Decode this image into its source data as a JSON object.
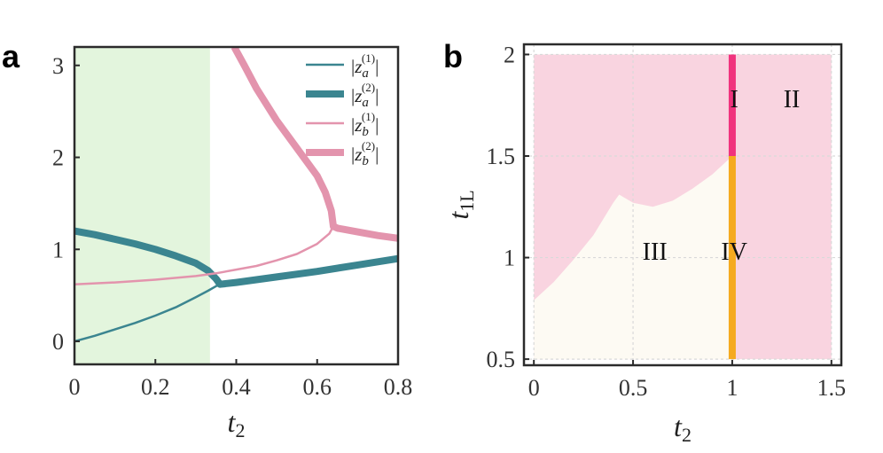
{
  "chart_data": [
    {
      "type": "line",
      "panel_label": "a",
      "xlabel": "t",
      "xlabel_sub": "2",
      "ylabel": "",
      "xlim": [
        0,
        0.8
      ],
      "ylim": [
        -0.25,
        3.2
      ],
      "xticks": [
        0,
        0.2,
        0.4,
        0.6,
        0.8
      ],
      "xtick_labels": [
        "0",
        "0.2",
        "0.4",
        "0.6",
        "0.8"
      ],
      "yticks": [
        0,
        1,
        2,
        3
      ],
      "ytick_labels": [
        "0",
        "1",
        "2",
        "3"
      ],
      "shaded_region": {
        "x": [
          0,
          0.335
        ],
        "color": "#e3f5dd"
      },
      "legend_position": "top-right",
      "series": [
        {
          "name": "|z_a^(1)|",
          "legend": {
            "pipe_open": "|",
            "base": "z",
            "sub": "a",
            "sup": "(1)",
            "pipe_close": "|"
          },
          "color": "#3b8590",
          "width": "thin",
          "x": [
            0,
            0.05,
            0.1,
            0.15,
            0.2,
            0.25,
            0.3,
            0.33,
            0.35,
            0.36
          ],
          "y": [
            0,
            0.06,
            0.13,
            0.2,
            0.28,
            0.37,
            0.48,
            0.55,
            0.6,
            0.62
          ]
        },
        {
          "name": "|z_a^(2)|",
          "legend": {
            "pipe_open": "|",
            "base": "z",
            "sub": "a",
            "sup": "(2)",
            "pipe_close": "|"
          },
          "color": "#3b8590",
          "width": "thick",
          "x": [
            0,
            0.05,
            0.1,
            0.15,
            0.2,
            0.25,
            0.3,
            0.33,
            0.35,
            0.36,
            0.4,
            0.5,
            0.6,
            0.7,
            0.8
          ],
          "y": [
            1.2,
            1.16,
            1.11,
            1.06,
            1.0,
            0.93,
            0.85,
            0.77,
            0.68,
            0.62,
            0.64,
            0.7,
            0.76,
            0.83,
            0.9
          ]
        },
        {
          "name": "|z_b^(1)|",
          "legend": {
            "pipe_open": "|",
            "base": "z",
            "sub": "b",
            "sup": "(1)",
            "pipe_close": "|"
          },
          "color": "#e394ad",
          "width": "thin",
          "x": [
            0,
            0.1,
            0.2,
            0.3,
            0.35,
            0.4,
            0.45,
            0.5,
            0.55,
            0.6,
            0.63,
            0.64
          ],
          "y": [
            0.62,
            0.64,
            0.67,
            0.71,
            0.74,
            0.78,
            0.82,
            0.88,
            0.95,
            1.06,
            1.17,
            1.25
          ]
        },
        {
          "name": "|z_b^(2)|",
          "legend": {
            "pipe_open": "|",
            "base": "z",
            "sub": "b",
            "sup": "(2)",
            "pipe_close": "|"
          },
          "color": "#e394ad",
          "width": "thick",
          "x": [
            0.395,
            0.42,
            0.45,
            0.5,
            0.55,
            0.6,
            0.62,
            0.635,
            0.64,
            0.65,
            0.7,
            0.75,
            0.8
          ],
          "y": [
            3.2,
            3.0,
            2.75,
            2.4,
            2.1,
            1.8,
            1.62,
            1.42,
            1.25,
            1.23,
            1.19,
            1.15,
            1.12
          ]
        }
      ]
    },
    {
      "type": "area",
      "panel_label": "b",
      "xlabel": "t",
      "xlabel_sub": "2",
      "ylabel": "t",
      "ylabel_sub": "1L",
      "xlim": [
        -0.05,
        1.55
      ],
      "ylim": [
        0.47,
        2.05
      ],
      "xticks": [
        0,
        0.5,
        1,
        1.5
      ],
      "xtick_labels": [
        "0",
        "0.5",
        "1",
        "1.5"
      ],
      "yticks": [
        0.5,
        1,
        1.5,
        2
      ],
      "ytick_labels": [
        "0.5",
        "1",
        "1.5",
        "2"
      ],
      "grid": true,
      "colors": {
        "upper_region": "#f9d4e0",
        "lower_region": "#fdfaf3",
        "line_I": "#f0337d",
        "line_IV": "#f5aa1f"
      },
      "boundary": {
        "x": [
          0,
          0.1,
          0.2,
          0.3,
          0.4,
          0.43,
          0.5,
          0.6,
          0.7,
          0.8,
          0.9,
          1.0
        ],
        "y": [
          0.79,
          0.88,
          0.99,
          1.11,
          1.27,
          1.31,
          1.27,
          1.25,
          1.28,
          1.34,
          1.41,
          1.5
        ]
      },
      "vertical_segments": [
        {
          "label": "I",
          "x": 1,
          "y": [
            1.5,
            2
          ]
        },
        {
          "label": "IV",
          "x": 1,
          "y": [
            0.5,
            1.5
          ]
        }
      ],
      "region_labels": [
        {
          "text": "I",
          "x": 1.01,
          "y": 1.74
        },
        {
          "text": "II",
          "x": 1.3,
          "y": 1.74
        },
        {
          "text": "III",
          "x": 0.61,
          "y": 0.99
        },
        {
          "text": "IV",
          "x": 1.01,
          "y": 0.99
        }
      ]
    }
  ]
}
